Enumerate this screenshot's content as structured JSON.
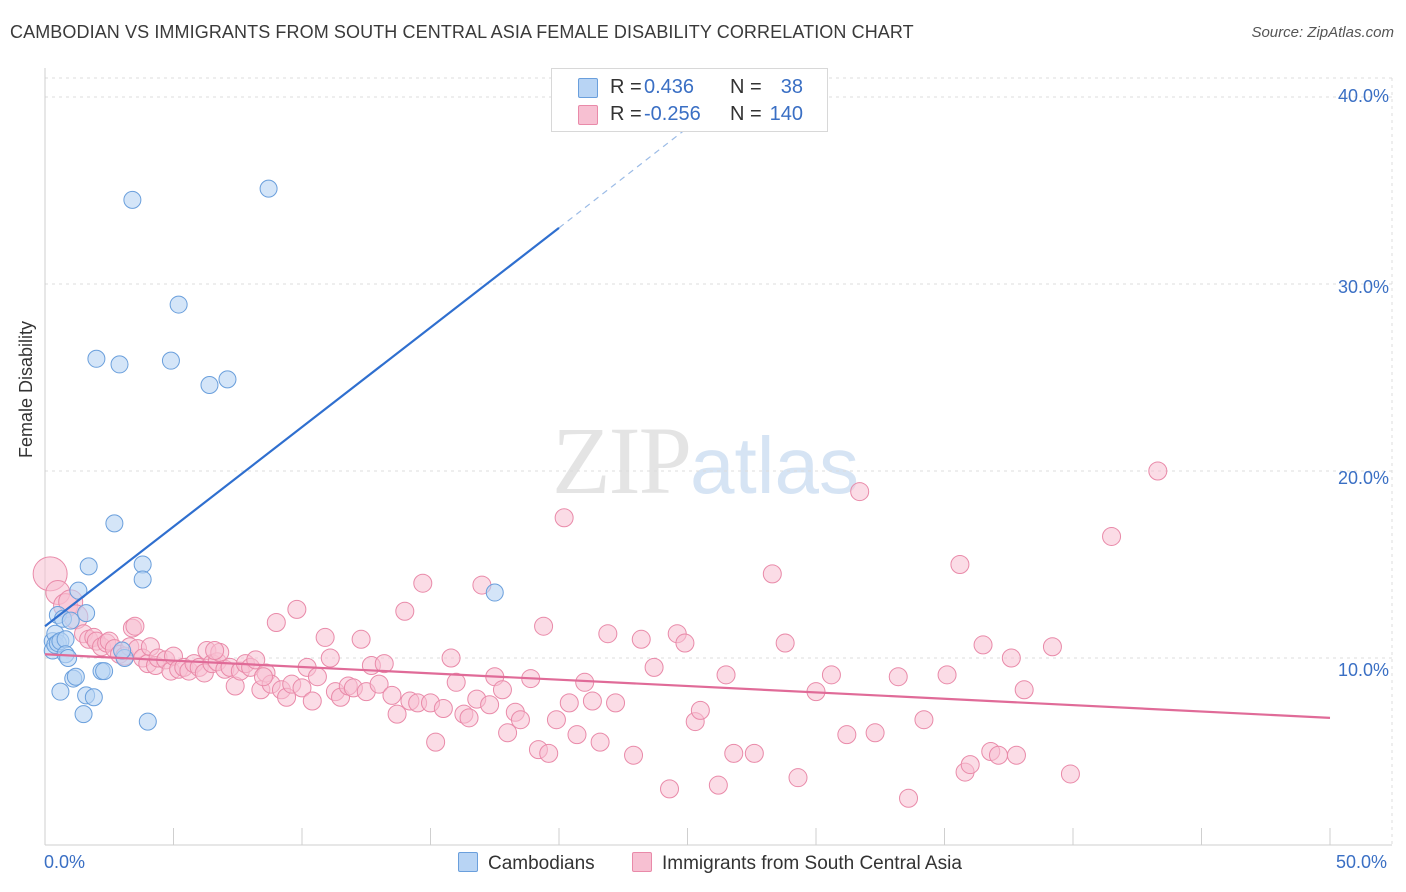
{
  "header": {
    "title": "CAMBODIAN VS IMMIGRANTS FROM SOUTH CENTRAL ASIA FEMALE DISABILITY CORRELATION CHART",
    "source": "Source: ZipAtlas.com"
  },
  "watermark": {
    "zip": "ZIP",
    "atlas": "atlas"
  },
  "legend": {
    "rows": [
      {
        "r_label": "R =",
        "r_value": "0.436",
        "n_label": "N =",
        "n_value": "38"
      },
      {
        "r_label": "R =",
        "r_value": "-0.256",
        "n_label": "N =",
        "n_value": "140"
      }
    ]
  },
  "bottom_legend": {
    "cambodians": "Cambodians",
    "immigrants": "Immigrants from South Central Asia"
  },
  "colors": {
    "blue_fill": "#b8d4f4",
    "blue_stroke": "#6a9fdc",
    "blue_line": "#2f6fcf",
    "pink_fill": "#f7c0d2",
    "pink_stroke": "#e98aa9",
    "pink_line": "#e06b98",
    "tick_text": "#3a6fc4"
  },
  "chart_data": {
    "type": "scatter",
    "title": "CAMBODIAN VS IMMIGRANTS FROM SOUTH CENTRAL ASIA FEMALE DISABILITY CORRELATION CHART",
    "xlabel": "",
    "ylabel": "Female Disability",
    "xlim": [
      0,
      50
    ],
    "ylim": [
      0,
      40
    ],
    "x_tick_labels": [
      "0.0%",
      "50.0%"
    ],
    "y_ticks": [
      10,
      20,
      30,
      40
    ],
    "y_tick_labels": [
      "10.0%",
      "20.0%",
      "30.0%",
      "40.0%"
    ],
    "grid": "horizontal dashed",
    "legend": "top-center",
    "series": [
      {
        "name": "Cambodians",
        "color": "#6a9fdc",
        "trend": {
          "x0": 0,
          "y0": 11.7,
          "x1": 20,
          "y1": 33.0,
          "dashed_to_x": 27,
          "dashed_to_y": 40.5
        },
        "points": [
          [
            0.3,
            10.9
          ],
          [
            0.3,
            10.4
          ],
          [
            0.4,
            11.3
          ],
          [
            0.4,
            10.7
          ],
          [
            0.5,
            10.8
          ],
          [
            0.5,
            12.3
          ],
          [
            0.6,
            10.9
          ],
          [
            0.6,
            8.2
          ],
          [
            0.7,
            12.1
          ],
          [
            0.8,
            11.0
          ],
          [
            0.8,
            10.2
          ],
          [
            0.9,
            10.0
          ],
          [
            1.0,
            12.0
          ],
          [
            1.1,
            8.9
          ],
          [
            1.2,
            9.0
          ],
          [
            1.3,
            13.6
          ],
          [
            1.5,
            7.0
          ],
          [
            1.6,
            12.4
          ],
          [
            1.6,
            8.0
          ],
          [
            1.7,
            14.9
          ],
          [
            1.9,
            7.9
          ],
          [
            2.2,
            9.3
          ],
          [
            2.3,
            9.3
          ],
          [
            2.7,
            17.2
          ],
          [
            2.9,
            25.7
          ],
          [
            3.1,
            10.0
          ],
          [
            3.4,
            34.5
          ],
          [
            3.8,
            15.0
          ],
          [
            3.8,
            14.2
          ],
          [
            4.0,
            6.6
          ],
          [
            4.9,
            25.9
          ],
          [
            5.2,
            28.9
          ],
          [
            6.4,
            24.6
          ],
          [
            7.1,
            24.9
          ],
          [
            8.7,
            35.1
          ],
          [
            3.0,
            10.4
          ],
          [
            2.0,
            26.0
          ],
          [
            17.5,
            13.5
          ]
        ]
      },
      {
        "name": "Immigrants from South Central Asia",
        "color": "#e98aa9",
        "trend": {
          "x0": 0,
          "y0": 10.2,
          "x1": 50,
          "y1": 6.8
        },
        "points": [
          [
            0.2,
            14.5
          ],
          [
            0.5,
            13.5
          ],
          [
            0.8,
            12.8
          ],
          [
            1.0,
            13.0
          ],
          [
            1.2,
            12.2
          ],
          [
            1.5,
            11.3
          ],
          [
            1.7,
            11.0
          ],
          [
            1.9,
            11.1
          ],
          [
            2.0,
            10.9
          ],
          [
            2.2,
            10.6
          ],
          [
            2.4,
            10.8
          ],
          [
            2.5,
            10.9
          ],
          [
            2.7,
            10.5
          ],
          [
            2.9,
            10.2
          ],
          [
            3.1,
            10.1
          ],
          [
            3.3,
            10.6
          ],
          [
            3.4,
            11.6
          ],
          [
            3.6,
            10.5
          ],
          [
            3.8,
            10.0
          ],
          [
            4.0,
            9.7
          ],
          [
            4.1,
            10.6
          ],
          [
            4.3,
            9.6
          ],
          [
            4.4,
            10.0
          ],
          [
            4.7,
            9.9
          ],
          [
            4.9,
            9.3
          ],
          [
            5.0,
            10.1
          ],
          [
            5.2,
            9.4
          ],
          [
            5.4,
            9.5
          ],
          [
            5.6,
            9.3
          ],
          [
            5.8,
            9.7
          ],
          [
            6.0,
            9.5
          ],
          [
            6.2,
            9.2
          ],
          [
            6.3,
            10.4
          ],
          [
            6.5,
            9.7
          ],
          [
            6.7,
            9.8
          ],
          [
            6.8,
            10.3
          ],
          [
            7.0,
            9.4
          ],
          [
            7.2,
            9.5
          ],
          [
            7.4,
            8.5
          ],
          [
            7.6,
            9.3
          ],
          [
            7.8,
            9.7
          ],
          [
            8.0,
            9.5
          ],
          [
            8.2,
            9.9
          ],
          [
            8.4,
            8.3
          ],
          [
            8.6,
            9.2
          ],
          [
            8.8,
            8.6
          ],
          [
            9.0,
            11.9
          ],
          [
            9.2,
            8.3
          ],
          [
            9.4,
            7.9
          ],
          [
            9.6,
            8.6
          ],
          [
            9.8,
            12.6
          ],
          [
            10.0,
            8.4
          ],
          [
            10.2,
            9.5
          ],
          [
            10.4,
            7.7
          ],
          [
            10.6,
            9.0
          ],
          [
            10.9,
            11.1
          ],
          [
            11.1,
            10.0
          ],
          [
            11.3,
            8.2
          ],
          [
            11.5,
            7.9
          ],
          [
            11.8,
            8.5
          ],
          [
            12.0,
            8.4
          ],
          [
            12.3,
            11.0
          ],
          [
            12.5,
            8.2
          ],
          [
            12.7,
            9.6
          ],
          [
            13.0,
            8.6
          ],
          [
            13.2,
            9.7
          ],
          [
            13.5,
            8.0
          ],
          [
            13.7,
            7.0
          ],
          [
            14.0,
            12.5
          ],
          [
            14.2,
            7.7
          ],
          [
            14.5,
            7.6
          ],
          [
            14.7,
            14.0
          ],
          [
            15.0,
            7.6
          ],
          [
            15.2,
            5.5
          ],
          [
            15.5,
            7.3
          ],
          [
            15.8,
            10.0
          ],
          [
            16.0,
            8.7
          ],
          [
            16.3,
            7.0
          ],
          [
            16.5,
            6.8
          ],
          [
            16.8,
            7.8
          ],
          [
            17.0,
            13.9
          ],
          [
            17.3,
            7.5
          ],
          [
            17.5,
            9.0
          ],
          [
            17.8,
            8.3
          ],
          [
            18.0,
            6.0
          ],
          [
            18.3,
            7.1
          ],
          [
            18.5,
            6.7
          ],
          [
            18.9,
            8.9
          ],
          [
            19.2,
            5.1
          ],
          [
            19.4,
            11.7
          ],
          [
            19.6,
            4.9
          ],
          [
            19.9,
            6.7
          ],
          [
            20.2,
            17.5
          ],
          [
            20.4,
            7.6
          ],
          [
            20.7,
            5.9
          ],
          [
            21.0,
            8.7
          ],
          [
            21.3,
            7.7
          ],
          [
            21.6,
            5.5
          ],
          [
            21.9,
            11.3
          ],
          [
            22.2,
            7.6
          ],
          [
            22.9,
            4.8
          ],
          [
            23.2,
            11.0
          ],
          [
            23.7,
            9.5
          ],
          [
            24.3,
            3.0
          ],
          [
            24.6,
            11.3
          ],
          [
            24.9,
            10.8
          ],
          [
            25.3,
            6.6
          ],
          [
            25.5,
            7.2
          ],
          [
            26.2,
            3.2
          ],
          [
            26.5,
            9.1
          ],
          [
            26.8,
            4.9
          ],
          [
            27.6,
            4.9
          ],
          [
            28.3,
            14.5
          ],
          [
            28.8,
            10.8
          ],
          [
            29.3,
            3.6
          ],
          [
            30.0,
            8.2
          ],
          [
            30.6,
            9.1
          ],
          [
            31.2,
            5.9
          ],
          [
            31.7,
            18.9
          ],
          [
            32.3,
            6.0
          ],
          [
            33.2,
            9.0
          ],
          [
            33.6,
            2.5
          ],
          [
            34.2,
            6.7
          ],
          [
            35.1,
            9.1
          ],
          [
            35.6,
            15.0
          ],
          [
            35.8,
            3.9
          ],
          [
            36.0,
            4.3
          ],
          [
            36.5,
            10.7
          ],
          [
            36.8,
            5.0
          ],
          [
            37.1,
            4.8
          ],
          [
            37.6,
            10.0
          ],
          [
            37.8,
            4.8
          ],
          [
            38.1,
            8.3
          ],
          [
            39.2,
            10.6
          ],
          [
            39.9,
            3.8
          ],
          [
            41.5,
            16.5
          ],
          [
            43.3,
            20.0
          ],
          [
            3.5,
            11.7
          ],
          [
            6.6,
            10.4
          ],
          [
            8.5,
            9.0
          ]
        ]
      }
    ]
  }
}
